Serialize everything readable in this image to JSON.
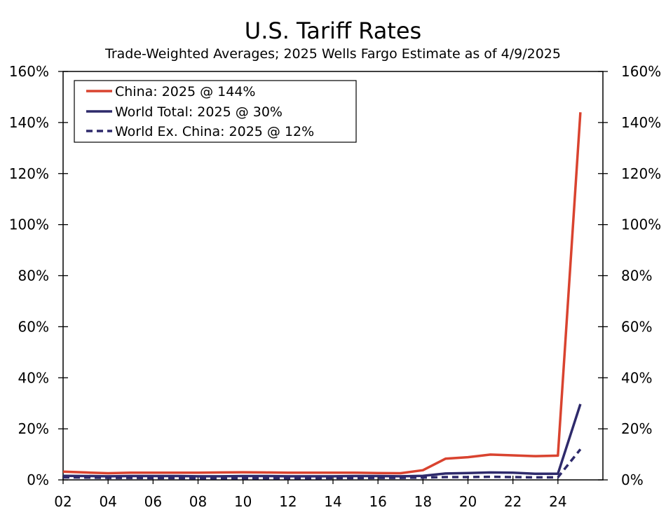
{
  "chart_data": {
    "type": "line",
    "title": "U.S. Tariff Rates",
    "subtitle": "Trade-Weighted Averages; 2025 Wells Fargo Estimate as of 4/9/2025",
    "xlabel": "",
    "ylabel": "",
    "x": [
      2002,
      2003,
      2004,
      2005,
      2006,
      2007,
      2008,
      2009,
      2010,
      2011,
      2012,
      2013,
      2014,
      2015,
      2016,
      2017,
      2018,
      2019,
      2020,
      2021,
      2022,
      2023,
      2024,
      2025
    ],
    "xlim": [
      2002,
      2026
    ],
    "ylim": [
      0,
      160
    ],
    "x_ticks": [
      {
        "value": 2002,
        "label": "02"
      },
      {
        "value": 2004,
        "label": "04"
      },
      {
        "value": 2006,
        "label": "06"
      },
      {
        "value": 2008,
        "label": "08"
      },
      {
        "value": 2010,
        "label": "10"
      },
      {
        "value": 2012,
        "label": "12"
      },
      {
        "value": 2014,
        "label": "14"
      },
      {
        "value": 2016,
        "label": "16"
      },
      {
        "value": 2018,
        "label": "18"
      },
      {
        "value": 2020,
        "label": "20"
      },
      {
        "value": 2022,
        "label": "22"
      },
      {
        "value": 2024,
        "label": "24"
      }
    ],
    "y_ticks": [
      {
        "value": 0,
        "label": "0%"
      },
      {
        "value": 20,
        "label": "20%"
      },
      {
        "value": 40,
        "label": "40%"
      },
      {
        "value": 60,
        "label": "60%"
      },
      {
        "value": 80,
        "label": "80%"
      },
      {
        "value": 100,
        "label": "100%"
      },
      {
        "value": 120,
        "label": "120%"
      },
      {
        "value": 140,
        "label": "140%"
      },
      {
        "value": 160,
        "label": "160%"
      }
    ],
    "legend_position": "top-left",
    "series": [
      {
        "name": "China: 2025 @ 144%",
        "color": "#d9432f",
        "dash": "solid",
        "values": [
          3.2,
          2.9,
          2.6,
          2.8,
          2.8,
          2.8,
          2.8,
          2.9,
          3.0,
          2.9,
          2.8,
          2.8,
          2.8,
          2.8,
          2.7,
          2.6,
          3.8,
          8.3,
          8.9,
          9.9,
          9.6,
          9.3,
          9.5,
          144
        ]
      },
      {
        "name": "World Total: 2025 @ 30%",
        "color": "#2e2a6b",
        "dash": "solid",
        "values": [
          1.6,
          1.5,
          1.4,
          1.5,
          1.5,
          1.5,
          1.4,
          1.4,
          1.5,
          1.5,
          1.4,
          1.4,
          1.4,
          1.5,
          1.5,
          1.4,
          1.6,
          2.5,
          2.7,
          2.9,
          2.8,
          2.4,
          2.4,
          29.7
        ]
      },
      {
        "name": "World Ex. China: 2025 @ 12%",
        "color": "#2e2a6b",
        "dash": "dashed",
        "values": [
          1.0,
          0.9,
          0.8,
          0.8,
          0.7,
          0.7,
          0.6,
          0.6,
          0.6,
          0.6,
          0.6,
          0.6,
          0.7,
          0.7,
          0.8,
          0.8,
          0.9,
          1.1,
          1.1,
          1.2,
          1.1,
          1.0,
          1.0,
          12.0
        ]
      }
    ]
  }
}
